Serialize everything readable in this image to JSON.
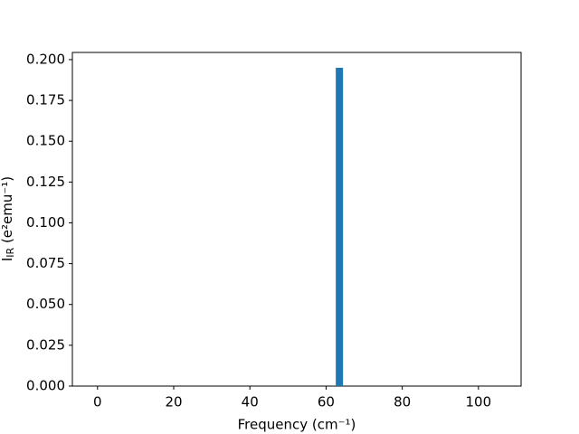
{
  "chart_data": {
    "type": "bar",
    "xlabel": "Frequency (cm⁻¹)",
    "ylabel": {
      "symbol": "I",
      "subscript": "IR",
      "unit": " (e²emu⁻¹)"
    },
    "x": [
      63.5
    ],
    "values": [
      0.195
    ],
    "bar_width": 1.9,
    "color": "#1f77b4",
    "xlim": [
      -6.6,
      111.2
    ],
    "xticks": [
      0,
      20,
      40,
      60,
      80,
      100
    ],
    "ylim": [
      0,
      0.2044
    ],
    "yticks": [
      {
        "value": 0,
        "label": "0.000"
      },
      {
        "value": 0.025,
        "label": "0.025"
      },
      {
        "value": 0.05,
        "label": "0.050"
      },
      {
        "value": 0.075,
        "label": "0.075"
      },
      {
        "value": 0.1,
        "label": "0.100"
      },
      {
        "value": 0.125,
        "label": "0.125"
      },
      {
        "value": 0.15,
        "label": "0.150"
      },
      {
        "value": 0.175,
        "label": "0.175"
      },
      {
        "value": 0.2,
        "label": "0.200"
      }
    ],
    "grid": false
  }
}
